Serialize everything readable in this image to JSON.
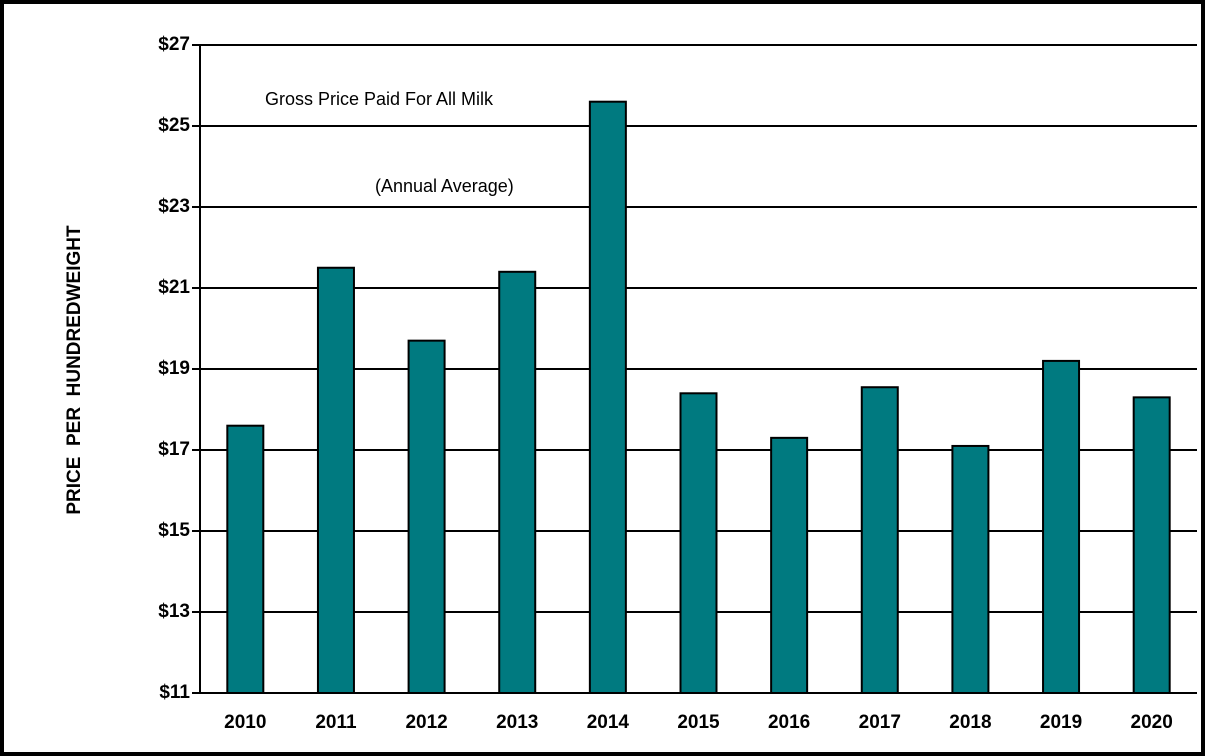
{
  "chart_data": {
    "type": "bar",
    "annotations": [
      "Gross Price Paid For All Milk",
      "(Annual Average)"
    ],
    "y_label": "PRICE  PER  HUNDREDWEIGHT",
    "categories": [
      "2010",
      "2011",
      "2012",
      "2013",
      "2014",
      "2015",
      "2016",
      "2017",
      "2018",
      "2019",
      "2020"
    ],
    "values": [
      17.6,
      21.5,
      19.7,
      21.4,
      25.6,
      18.4,
      17.3,
      18.55,
      17.1,
      19.2,
      18.3
    ],
    "color": "#007a80",
    "ylim": [
      11,
      27
    ],
    "yticks": [
      {
        "value": 11,
        "label": "$11"
      },
      {
        "value": 13,
        "label": "$13"
      },
      {
        "value": 15,
        "label": "$15"
      },
      {
        "value": 17,
        "label": "$17"
      },
      {
        "value": 19,
        "label": "$19"
      },
      {
        "value": 21,
        "label": "$21"
      },
      {
        "value": 23,
        "label": "$23"
      },
      {
        "value": 25,
        "label": "$25"
      },
      {
        "value": 27,
        "label": "$27"
      }
    ],
    "grid": true
  }
}
